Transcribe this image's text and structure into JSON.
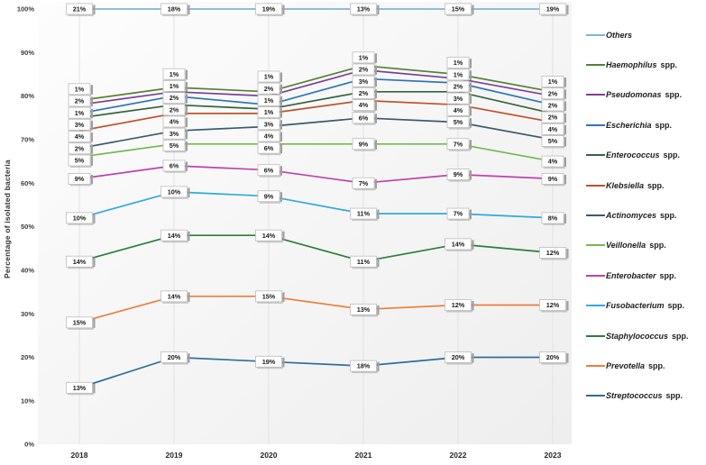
{
  "chart_data": {
    "type": "line",
    "stacking": "cumulative-percentage",
    "title": "",
    "xlabel": "",
    "ylabel": "Percentage of isolated bacteria",
    "categories": [
      "2018",
      "2019",
      "2020",
      "2021",
      "2022",
      "2023"
    ],
    "y_ticks": [
      "100%",
      "90%",
      "80%",
      "70%",
      "60%",
      "50%",
      "40%",
      "30%",
      "20%",
      "10%",
      "0%"
    ],
    "ylim": [
      0,
      100
    ],
    "grid": "vertical",
    "legend_position": "right",
    "data_label_format": "{value}%",
    "series": [
      {
        "name": "Others",
        "suffix": "",
        "color": "#7fb5da",
        "values": [
          21,
          18,
          19,
          13,
          15,
          19
        ]
      },
      {
        "name": "Haemophilus",
        "suffix": "spp.",
        "color": "#548235",
        "values": [
          1,
          1,
          1,
          1,
          1,
          1
        ]
      },
      {
        "name": "Pseudomonas",
        "suffix": "spp.",
        "color": "#7e4093",
        "values": [
          2,
          1,
          2,
          2,
          1,
          2
        ]
      },
      {
        "name": "Escherichia",
        "suffix": "spp.",
        "color": "#2e75b6",
        "values": [
          1,
          2,
          1,
          3,
          2,
          2
        ]
      },
      {
        "name": "Enterococcus",
        "suffix": "spp.",
        "color": "#37633c",
        "values": [
          3,
          2,
          1,
          2,
          3,
          2
        ]
      },
      {
        "name": "Klebsiella",
        "suffix": "spp.",
        "color": "#c0522a",
        "values": [
          4,
          4,
          3,
          4,
          4,
          4
        ]
      },
      {
        "name": "Actinomyces",
        "suffix": "spp.",
        "color": "#3a5a6f",
        "values": [
          2,
          3,
          4,
          6,
          5,
          5
        ]
      },
      {
        "name": "Veillonella",
        "suffix": "spp.",
        "color": "#77b84d",
        "values": [
          5,
          5,
          6,
          9,
          7,
          4
        ]
      },
      {
        "name": "Enterobacter",
        "suffix": "spp.",
        "color": "#bf41ad",
        "values": [
          9,
          6,
          6,
          7,
          9,
          9
        ]
      },
      {
        "name": "Fusobacterium",
        "suffix": "spp.",
        "color": "#2fa9e1",
        "values": [
          10,
          10,
          9,
          11,
          7,
          8
        ]
      },
      {
        "name": "Staphylococcus",
        "suffix": "spp.",
        "color": "#2c7e3b",
        "values": [
          14,
          14,
          14,
          11,
          14,
          12
        ]
      },
      {
        "name": "Prevotella",
        "suffix": "spp.",
        "color": "#ef7d3d",
        "values": [
          15,
          14,
          15,
          13,
          12,
          12
        ]
      },
      {
        "name": "Streptococcus",
        "suffix": "spp.",
        "color": "#2d6e9c",
        "values": [
          13,
          20,
          19,
          18,
          20,
          20
        ]
      }
    ]
  }
}
